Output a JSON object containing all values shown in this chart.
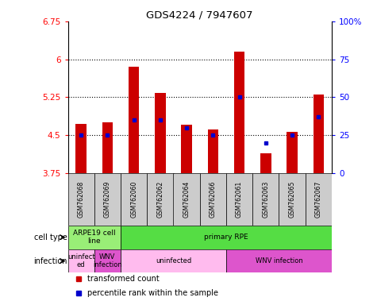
{
  "title": "GDS4224 / 7947607",
  "samples": [
    "GSM762068",
    "GSM762069",
    "GSM762060",
    "GSM762062",
    "GSM762064",
    "GSM762066",
    "GSM762061",
    "GSM762063",
    "GSM762065",
    "GSM762067"
  ],
  "transformed_count": [
    4.72,
    4.76,
    5.85,
    5.33,
    4.71,
    4.62,
    6.15,
    4.15,
    4.56,
    5.3
  ],
  "base_value": 3.75,
  "percentile_rank": [
    25,
    25,
    35,
    35,
    30,
    25,
    50,
    20,
    25,
    37
  ],
  "ylim": [
    3.75,
    6.75
  ],
  "yticks": [
    3.75,
    4.5,
    5.25,
    6.0,
    6.75
  ],
  "ytick_labels": [
    "3.75",
    "4.5",
    "5.25",
    "6",
    "6.75"
  ],
  "y2lim": [
    0,
    100
  ],
  "y2ticks": [
    0,
    25,
    50,
    75,
    100
  ],
  "y2ticklabels": [
    "0",
    "25",
    "50",
    "75",
    "100%"
  ],
  "grid_values": [
    4.5,
    5.25,
    6.0
  ],
  "bar_color": "#cc0000",
  "dot_color": "#0000cc",
  "bar_width": 0.4,
  "cell_type_spans": [
    {
      "start": 0,
      "end": 2,
      "label": "ARPE19 cell\nline",
      "color": "#99ee77"
    },
    {
      "start": 2,
      "end": 10,
      "label": "primary RPE",
      "color": "#55dd44"
    }
  ],
  "infection_spans": [
    {
      "start": 0,
      "end": 1,
      "label": "uninfect\ned",
      "color": "#ffbbee"
    },
    {
      "start": 1,
      "end": 2,
      "label": "WNV\ninfection",
      "color": "#dd55cc"
    },
    {
      "start": 2,
      "end": 6,
      "label": "uninfected",
      "color": "#ffbbee"
    },
    {
      "start": 6,
      "end": 10,
      "label": "WNV infection",
      "color": "#dd55cc"
    }
  ],
  "row_label_cell_type": "cell type",
  "row_label_infection": "infection",
  "legend_items": [
    {
      "color": "#cc0000",
      "label": "transformed count"
    },
    {
      "color": "#0000cc",
      "label": "percentile rank within the sample"
    }
  ]
}
